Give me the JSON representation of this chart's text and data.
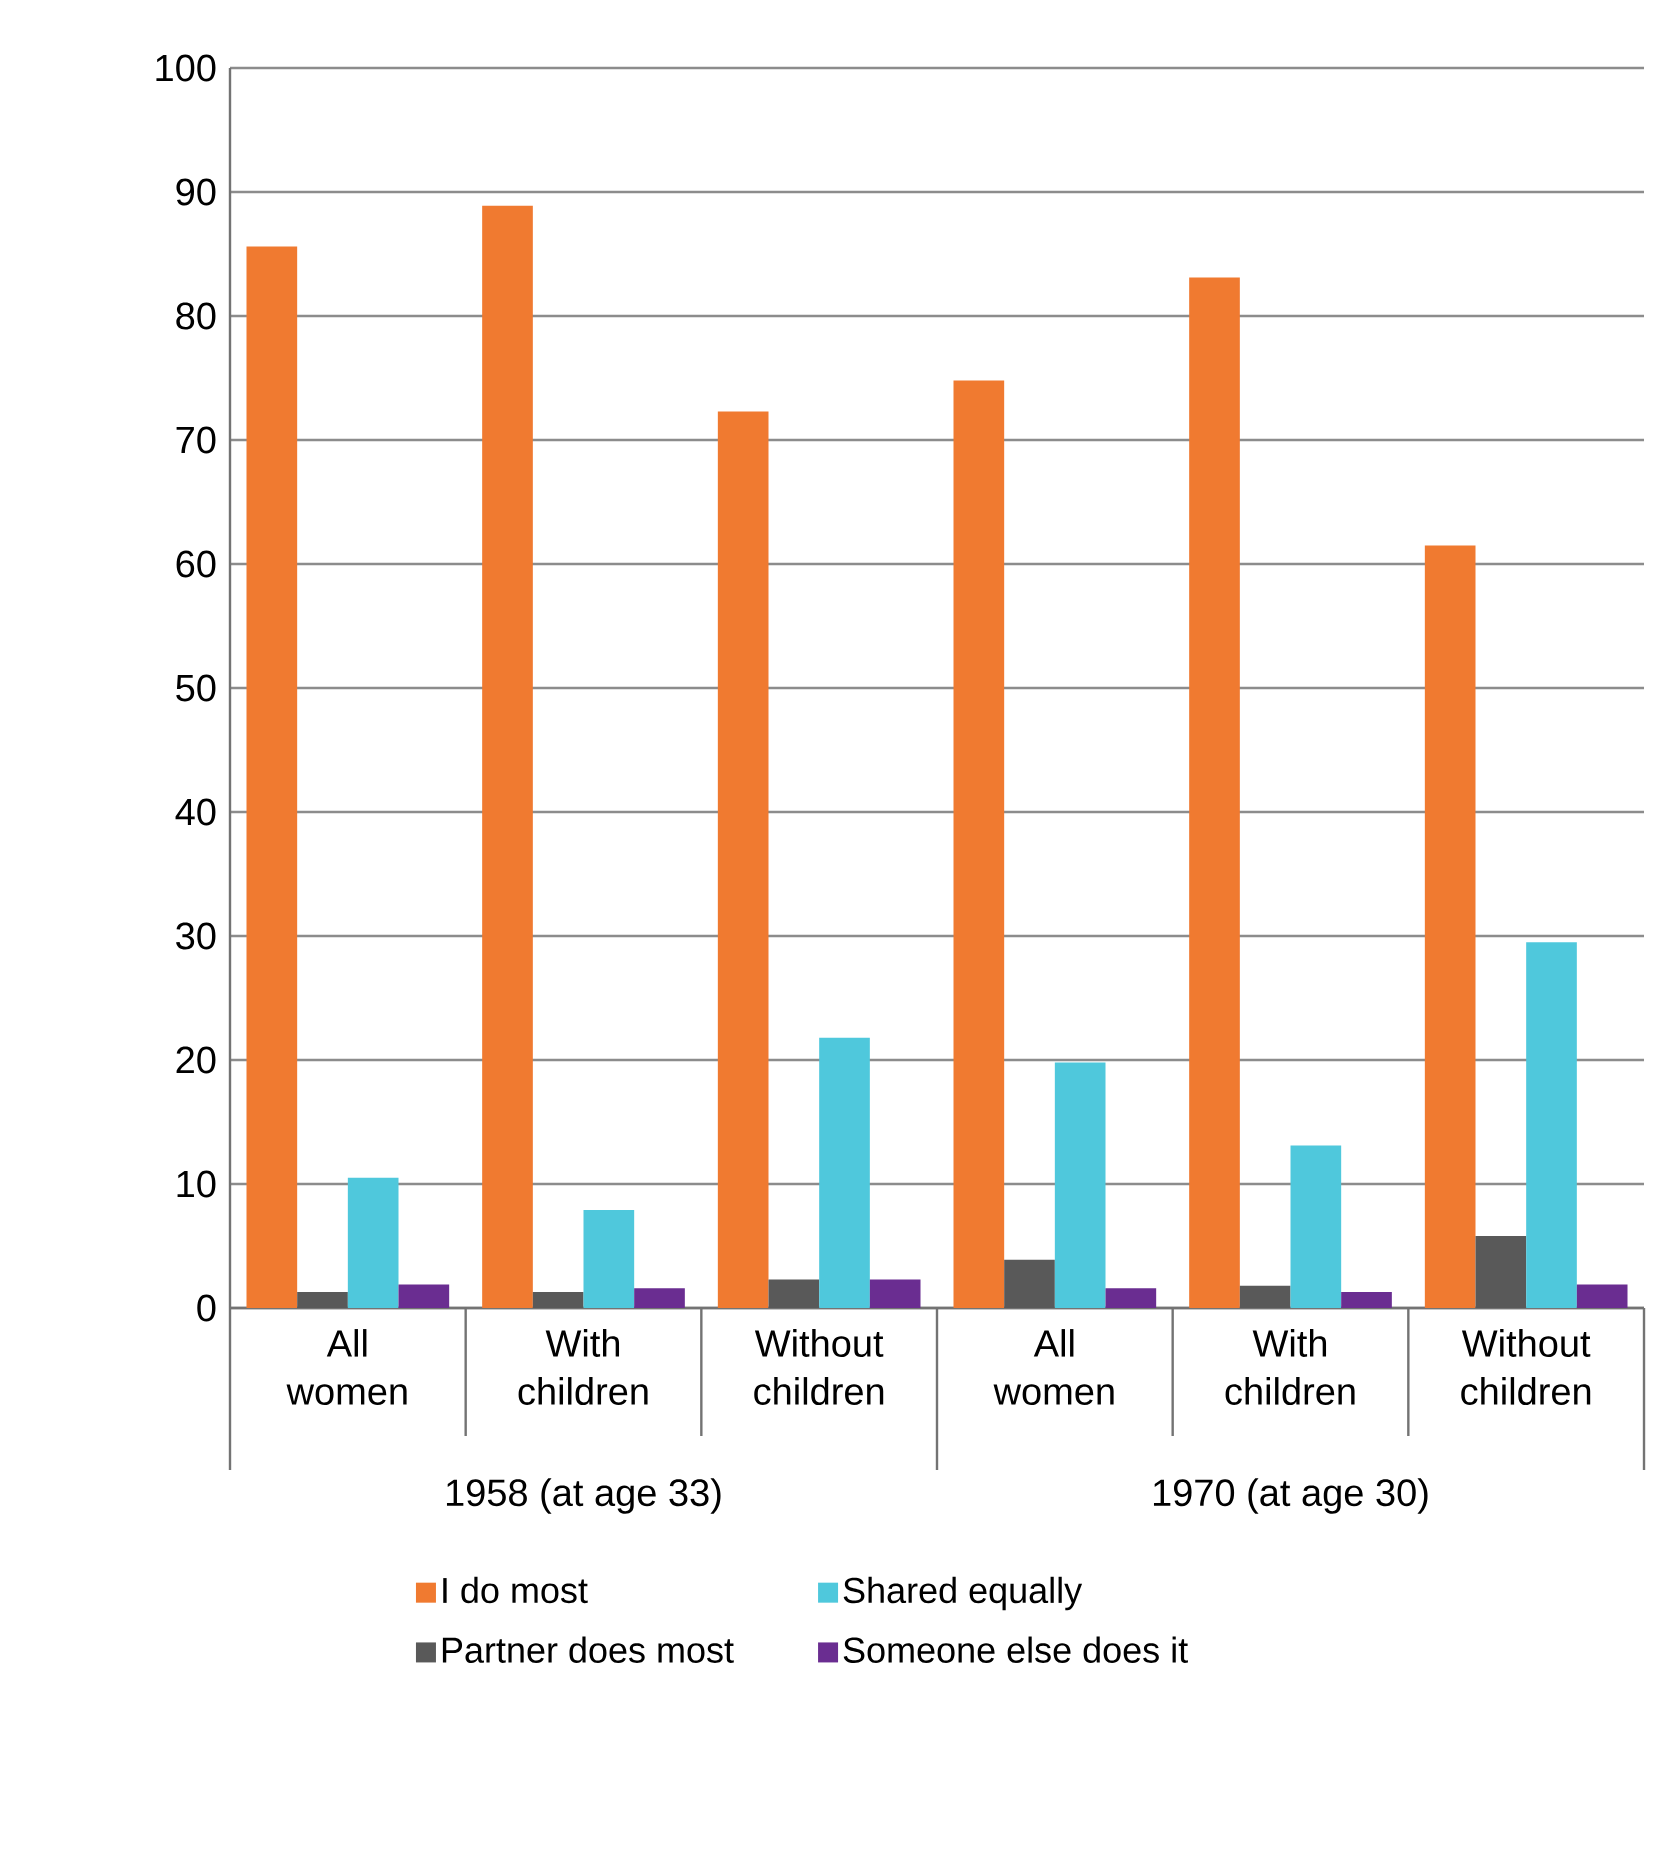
{
  "chart_data": {
    "type": "bar",
    "categories": [
      "All women",
      "With children",
      "Without children",
      "All women",
      "With children",
      "Without children"
    ],
    "series": [
      {
        "name": "I do most",
        "color": "#f07a30",
        "values": [
          85.6,
          88.9,
          72.3,
          74.8,
          83.1,
          61.5
        ]
      },
      {
        "name": "Partner does most",
        "color": "#595959",
        "values": [
          1.3,
          1.3,
          2.3,
          3.9,
          1.8,
          5.8
        ]
      },
      {
        "name": "Shared equally",
        "color": "#4fc8dc",
        "values": [
          10.5,
          7.9,
          21.8,
          19.8,
          13.1,
          29.5
        ]
      },
      {
        "name": "Someone else does it",
        "color": "#6a2d91",
        "values": [
          1.9,
          1.6,
          2.3,
          1.6,
          1.3,
          1.9
        ]
      }
    ],
    "ylim": [
      0,
      100
    ],
    "yticks": [
      0,
      10,
      20,
      30,
      40,
      50,
      60,
      70,
      80,
      90,
      100
    ],
    "grid": "y",
    "legend": "bottom",
    "annotations": [
      "1958 (at age 33)",
      "1970 (at age 30)"
    ]
  }
}
